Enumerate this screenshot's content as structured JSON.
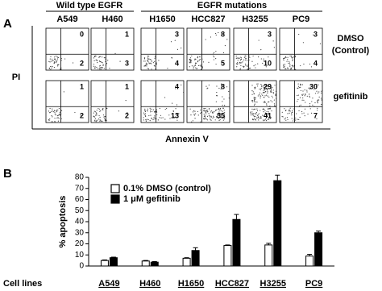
{
  "panel_a": {
    "label": "A",
    "groups": [
      {
        "title": "Wild type EGFR"
      },
      {
        "title": "EGFR mutations"
      }
    ],
    "cell_lines": [
      "A549",
      "H460",
      "H1650",
      "HCC827",
      "H3255",
      "PC9"
    ],
    "rows": [
      {
        "label": [
          "DMSO",
          "(Control)"
        ],
        "quadrants": [
          [
            0,
            2
          ],
          [
            1,
            3
          ],
          [
            3,
            4
          ],
          [
            8,
            5
          ],
          [
            3,
            10
          ],
          [
            3,
            4
          ]
        ]
      },
      {
        "label": [
          "gefitinib"
        ],
        "quadrants": [
          [
            1,
            2
          ],
          [
            1,
            2
          ],
          [
            4,
            13
          ],
          [
            8,
            35
          ],
          [
            29,
            41
          ],
          [
            30,
            7
          ]
        ]
      }
    ],
    "y_label": "PI",
    "x_label": "Annexin V"
  },
  "chart_data": {
    "type": "bar",
    "panel_label": "B",
    "ylabel": "% apoptosis",
    "xlabel": "Cell lines",
    "categories": [
      "A549",
      "H460",
      "H1650",
      "HCC827",
      "H3255",
      "PC9"
    ],
    "series": [
      {
        "name": "0.1% DMSO (control)",
        "color": "#ffffff",
        "values": [
          5,
          4.5,
          7,
          18.5,
          19,
          9
        ],
        "errors": [
          0.5,
          0.5,
          0.5,
          0.5,
          1.5,
          1.5
        ]
      },
      {
        "name": "1 μM gefitinib",
        "color": "#000000",
        "values": [
          7.5,
          3.5,
          14,
          42,
          77,
          30
        ],
        "errors": [
          0.5,
          0.5,
          2.5,
          4.5,
          5,
          1.5
        ]
      }
    ],
    "ylim": [
      0,
      80
    ],
    "yticks": [
      0,
      10,
      20,
      30,
      40,
      50,
      60,
      70,
      80
    ]
  }
}
